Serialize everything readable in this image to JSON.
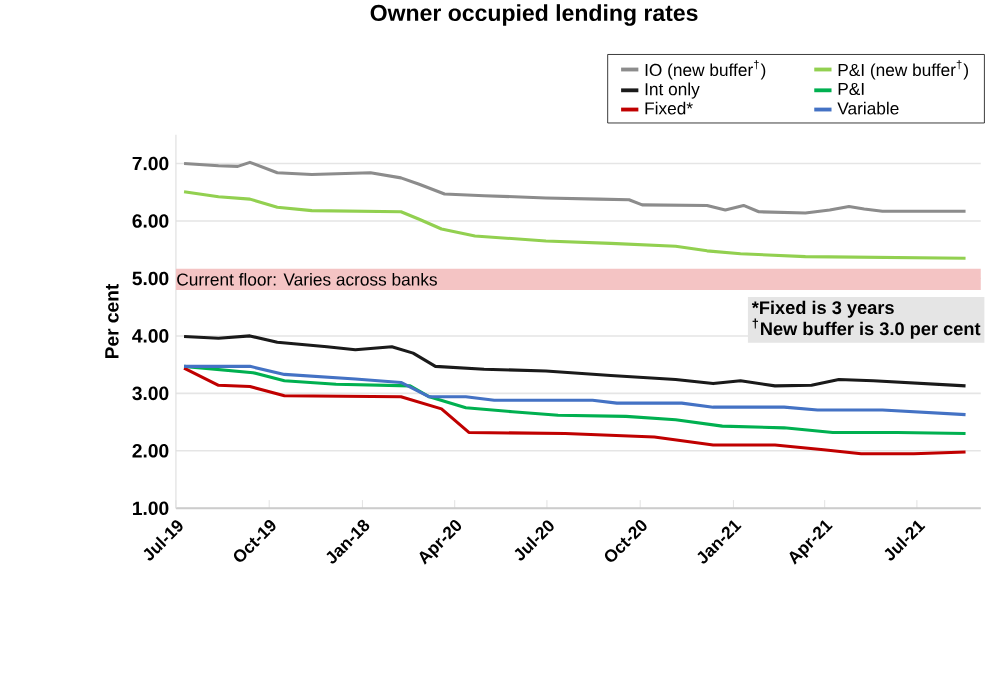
{
  "chart_data": {
    "type": "line",
    "title": "Owner occupied lending rates",
    "ylabel": "Per cent",
    "xlim": [
      "2019-07-01",
      "2021-09-02"
    ],
    "ylim": [
      1,
      7.5
    ],
    "xticks": [
      {
        "value": "2019-07",
        "label": "Jul-19"
      },
      {
        "value": "2019-10",
        "label": "Oct-19"
      },
      {
        "value": "2020-01",
        "label": "Jan-18"
      },
      {
        "value": "2020-04",
        "label": "Apr-20"
      },
      {
        "value": "2020-07",
        "label": "Jul-20"
      },
      {
        "value": "2020-10",
        "label": "Oct-20"
      },
      {
        "value": "2021-01",
        "label": "Jan-21"
      },
      {
        "value": "2021-04",
        "label": "Apr-21"
      },
      {
        "value": "2021-07",
        "label": "Jul-21"
      }
    ],
    "yticks": [
      {
        "value": 1,
        "label": "1.00"
      },
      {
        "value": 2,
        "label": "2.00"
      },
      {
        "value": 3,
        "label": "3.00"
      },
      {
        "value": 4,
        "label": "4.00"
      },
      {
        "value": 5,
        "label": "5.00"
      },
      {
        "value": 6,
        "label": "6.00"
      },
      {
        "value": 7,
        "label": "7.00"
      }
    ],
    "grid": "y",
    "legend": "top right",
    "line_style": "solid",
    "bands": [
      {
        "axis": "y",
        "from": 4.8,
        "to": 5.17,
        "label": "Current floor: Varies across banks",
        "color": "#f4c4c4"
      }
    ],
    "annotations": [
      "*Fixed is 3 years",
      "$^{†}$New buffer is 3.0 per cent"
    ],
    "series": [
      {
        "name": "IO (new buffer$^{†}$)",
        "color": "#8c8c8c",
        "x": [
          "2019-07-09",
          "2019-08-12",
          "2019-08-31",
          "2019-09-12",
          "2019-10-09",
          "2019-11-12",
          "2020-01-09",
          "2020-02-08",
          "2020-02-26",
          "2020-03-22",
          "2020-04-30",
          "2020-06-30",
          "2020-08-21",
          "2020-09-20",
          "2020-10-03",
          "2020-12-06",
          "2020-12-24",
          "2021-01-11",
          "2021-01-26",
          "2021-03-13",
          "2021-04-06",
          "2021-04-25",
          "2021-05-10",
          "2021-05-28",
          "2021-08-18"
        ],
        "values": [
          7.0,
          6.96,
          6.95,
          7.02,
          6.84,
          6.81,
          6.84,
          6.75,
          6.64,
          6.47,
          6.44,
          6.4,
          6.38,
          6.37,
          6.28,
          6.27,
          6.19,
          6.27,
          6.16,
          6.14,
          6.19,
          6.25,
          6.21,
          6.17,
          6.17
        ]
      },
      {
        "name": "P&I (new buffer$^{†}$)",
        "color": "#92d050",
        "x": [
          "2019-07-09",
          "2019-08-12",
          "2019-09-12",
          "2019-10-09",
          "2019-11-12",
          "2020-02-08",
          "2020-02-26",
          "2020-03-19",
          "2020-04-21",
          "2020-06-30",
          "2020-09-02",
          "2020-11-05",
          "2020-12-06",
          "2021-01-08",
          "2021-03-13",
          "2021-08-18"
        ],
        "values": [
          6.51,
          6.42,
          6.38,
          6.24,
          6.18,
          6.16,
          6.03,
          5.86,
          5.74,
          5.65,
          5.61,
          5.56,
          5.48,
          5.43,
          5.38,
          5.35
        ]
      },
      {
        "name": "Int only",
        "color": "#1a1a1a",
        "x": [
          "2019-07-09",
          "2019-08-12",
          "2019-09-12",
          "2019-10-09",
          "2019-11-27",
          "2019-12-25",
          "2020-01-30",
          "2020-02-20",
          "2020-03-13",
          "2020-04-30",
          "2020-06-30",
          "2020-09-02",
          "2020-11-05",
          "2020-12-12",
          "2021-01-08",
          "2021-02-11",
          "2021-03-19",
          "2021-04-15",
          "2021-05-19",
          "2021-08-18"
        ],
        "values": [
          3.99,
          3.96,
          4.0,
          3.89,
          3.81,
          3.76,
          3.81,
          3.7,
          3.47,
          3.42,
          3.39,
          3.31,
          3.24,
          3.17,
          3.22,
          3.13,
          3.14,
          3.24,
          3.22,
          3.13
        ]
      },
      {
        "name": "P&I",
        "color": "#00b050",
        "x": [
          "2019-07-09",
          "2019-09-15",
          "2019-10-16",
          "2019-12-06",
          "2020-02-17",
          "2020-03-07",
          "2020-04-12",
          "2020-05-28",
          "2020-07-12",
          "2020-09-17",
          "2020-11-05",
          "2020-12-21",
          "2021-02-20",
          "2021-04-09",
          "2021-06-12",
          "2021-08-18"
        ],
        "values": [
          3.47,
          3.36,
          3.22,
          3.16,
          3.13,
          2.94,
          2.75,
          2.68,
          2.62,
          2.6,
          2.54,
          2.43,
          2.4,
          2.32,
          2.32,
          2.3
        ]
      },
      {
        "name": "Fixed*",
        "color": "#c00000",
        "x": [
          "2019-07-09",
          "2019-08-12",
          "2019-09-12",
          "2019-10-16",
          "2020-02-08",
          "2020-03-19",
          "2020-04-15",
          "2020-07-19",
          "2020-10-15",
          "2020-12-12",
          "2021-02-11",
          "2021-03-31",
          "2021-05-07",
          "2021-06-28",
          "2021-08-18"
        ],
        "values": [
          3.44,
          3.14,
          3.12,
          2.96,
          2.94,
          2.73,
          2.32,
          2.3,
          2.24,
          2.1,
          2.1,
          2.02,
          1.95,
          1.95,
          1.98
        ]
      },
      {
        "name": "Variable",
        "color": "#4472c4",
        "x": [
          "2019-07-09",
          "2019-09-12",
          "2019-10-16",
          "2019-12-25",
          "2020-02-08",
          "2020-03-07",
          "2020-04-12",
          "2020-05-10",
          "2020-08-15",
          "2020-09-08",
          "2020-11-11",
          "2020-12-12",
          "2021-02-20",
          "2021-03-25",
          "2021-05-28",
          "2021-08-18"
        ],
        "values": [
          3.47,
          3.47,
          3.33,
          3.25,
          3.19,
          2.94,
          2.94,
          2.88,
          2.88,
          2.83,
          2.83,
          2.76,
          2.76,
          2.71,
          2.71,
          2.63
        ]
      }
    ]
  }
}
